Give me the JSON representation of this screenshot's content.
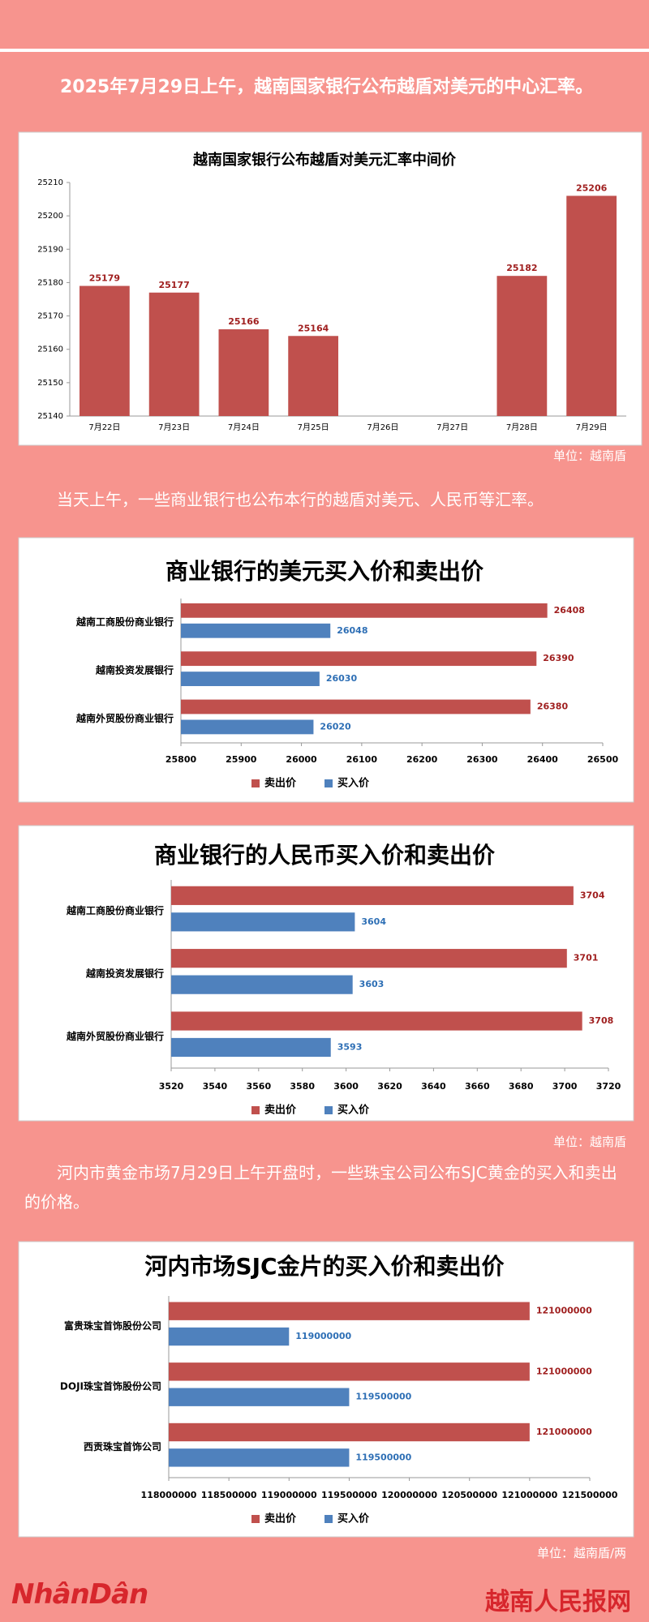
{
  "paragraphs": [
    "2025年7月29日上午，越南国家银行公布越盾对美元的中心汇率。",
    "当天上午，一些商业银行也公布本行的越盾对美元、人民币等汇率。",
    "河内市黄金市场7月29日上午开盘时，一些珠宝公司公布SJC黄金的买入和卖出的价格。"
  ],
  "units": [
    "单位：越南盾",
    "单位：越南盾",
    "单位：越南盾/两"
  ],
  "footer": {
    "logo": "NhânDân",
    "site": "越南人民报网"
  },
  "chart_data": [
    {
      "type": "bar",
      "title": "越南国家银行公布越盾对美元汇率中间价",
      "categories": [
        "7月22日",
        "7月23日",
        "7月24日",
        "7月25日",
        "7月26日",
        "7月27日",
        "7月28日",
        "7月29日"
      ],
      "values": [
        25179,
        25177,
        25166,
        25164,
        null,
        null,
        25182,
        25206
      ],
      "color": "#c0504d",
      "ylim": [
        25140,
        25210
      ],
      "yticks": [
        25140,
        25150,
        25160,
        25170,
        25180,
        25190,
        25200,
        25210
      ]
    },
    {
      "type": "hbar",
      "title": "商业银行的美元买入价和卖出价",
      "categories": [
        "越南工商股份商业银行",
        "越南投资发展银行",
        "越南外贸股份商业银行"
      ],
      "series": [
        {
          "name": "卖出价",
          "color": "#c0504d",
          "values": [
            26408,
            26390,
            26380
          ]
        },
        {
          "name": "买入价",
          "color": "#4f81bd",
          "values": [
            26048,
            26030,
            26020
          ]
        }
      ],
      "xlim": [
        25800,
        26500
      ],
      "xticks": [
        25800,
        25900,
        26000,
        26100,
        26200,
        26300,
        26400,
        26500
      ],
      "legend": "bottom"
    },
    {
      "type": "hbar",
      "title": "商业银行的人民币买入价和卖出价",
      "categories": [
        "越南工商股份商业银行",
        "越南投资发展银行",
        "越南外贸股份商业银行"
      ],
      "series": [
        {
          "name": "卖出价",
          "color": "#c0504d",
          "values": [
            3704,
            3701,
            3708
          ]
        },
        {
          "name": "买入价",
          "color": "#4f81bd",
          "values": [
            3604,
            3603,
            3593
          ]
        }
      ],
      "xlim": [
        3520,
        3720
      ],
      "xticks": [
        3520,
        3540,
        3560,
        3580,
        3600,
        3620,
        3640,
        3660,
        3680,
        3700,
        3720
      ],
      "legend": "bottom"
    },
    {
      "type": "hbar",
      "title": "河内市场SJC金片的买入价和卖出价",
      "categories": [
        "富贵珠宝首饰股份公司",
        "DOJI珠宝首饰股份公司",
        "西贡珠宝首饰公司"
      ],
      "series": [
        {
          "name": "卖出价",
          "color": "#c0504d",
          "values": [
            121000000,
            121000000,
            121000000
          ]
        },
        {
          "name": "买入价",
          "color": "#4f81bd",
          "values": [
            119000000,
            119500000,
            119500000
          ]
        }
      ],
      "xlim": [
        118000000,
        121500000
      ],
      "xticks": [
        118000000,
        118500000,
        119000000,
        119500000,
        120000000,
        120500000,
        121000000,
        121500000
      ],
      "legend": "bottom"
    }
  ]
}
